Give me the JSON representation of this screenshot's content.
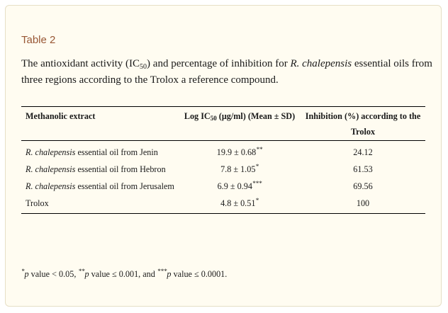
{
  "table": {
    "label": "Table 2",
    "caption": {
      "part1": "The antioxidant activity (IC",
      "sub": "50",
      "part2": ") and percentage of inhibition for ",
      "species": "R. chalepensis",
      "part3": " essential oils from three regions according to the Trolox a reference compound."
    },
    "headers": {
      "col1": "Methanolic extract",
      "col2_pre": "Log IC",
      "col2_sub": "50",
      "col2_post": " (μg/ml) (Mean ± SD)",
      "col3": "Inhibition (%) according to the Trolox"
    },
    "rows": [
      {
        "extract_species": "R. chalepensis",
        "extract_text": " essential oil from Jenin",
        "ic50": "19.9 ± 0.68",
        "sig": "**",
        "inhibition": "24.12"
      },
      {
        "extract_species": "R. chalepensis",
        "extract_text": " essential oil from Hebron",
        "ic50": "7.8 ± 1.05",
        "sig": "*",
        "inhibition": "61.53"
      },
      {
        "extract_species": "R. chalepensis",
        "extract_text": " essential oil from Jerusalem",
        "ic50": "6.9 ± 0.94",
        "sig": "***",
        "inhibition": "69.56"
      },
      {
        "extract_species": "",
        "extract_text": "Trolox",
        "ic50": "4.8 ± 0.51",
        "sig": "*",
        "inhibition": "100"
      }
    ]
  },
  "footnote": {
    "m1": "*",
    "t1": "p",
    "t2": " value < 0.05, ",
    "m2": "**",
    "t3": "p",
    "t4": " value ≤ 0.001, and ",
    "m3": "***",
    "t5": "p",
    "t6": " value ≤ 0.0001."
  }
}
